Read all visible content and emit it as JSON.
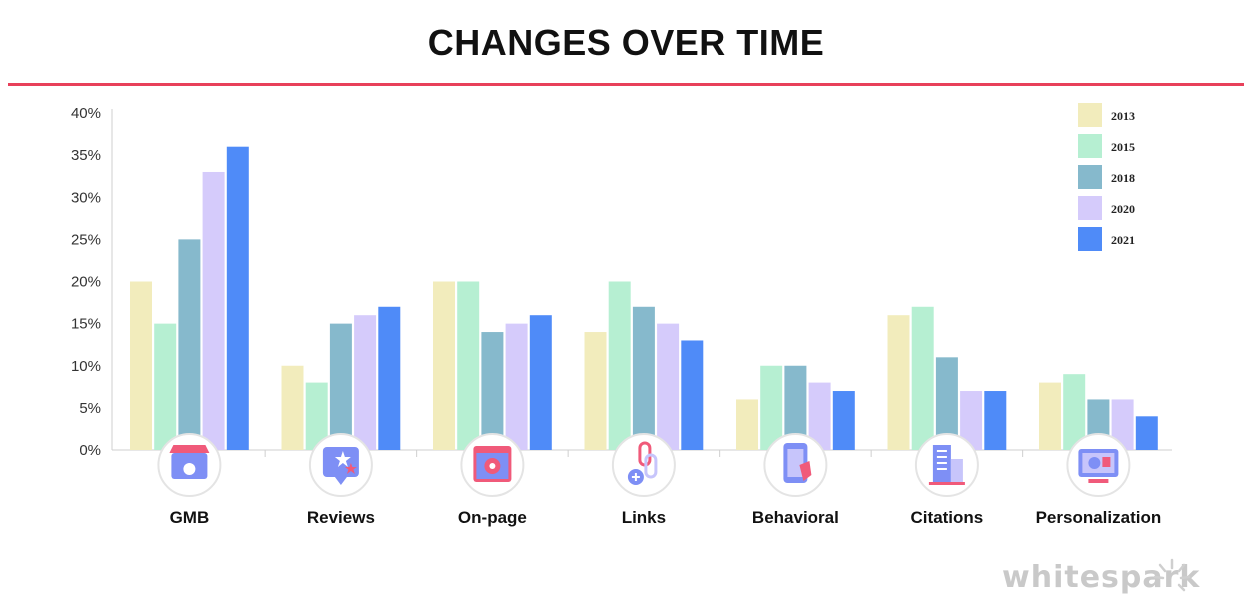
{
  "title": "CHANGES OVER TIME",
  "brand": "whitespark",
  "colors": {
    "title_rule": "#e8405a",
    "axis": "#cfcfcf",
    "icon_circle_stroke": "#e4e4e4",
    "brand": "#c9c9c9"
  },
  "chart_data": {
    "type": "bar",
    "title": "CHANGES OVER TIME",
    "xlabel": "",
    "ylabel": "",
    "ylim": [
      0,
      40
    ],
    "y_ticks": [
      "0%",
      "5%",
      "10%",
      "15%",
      "20%",
      "25%",
      "30%",
      "35%",
      "40%"
    ],
    "y_tick_values": [
      0,
      5,
      10,
      15,
      20,
      25,
      30,
      35,
      40
    ],
    "grid": false,
    "legend_position": "top-right",
    "categories": [
      "GMB",
      "Reviews",
      "On-page",
      "Links",
      "Behavioral",
      "Citations",
      "Personalization"
    ],
    "category_icons": [
      "storefront-icon",
      "star-rating-icon",
      "webpage-settings-icon",
      "chain-link-icon",
      "phone-tap-icon",
      "building-icon",
      "monitor-settings-icon"
    ],
    "series": [
      {
        "name": "2013",
        "color": "#f2ecbc",
        "values": [
          20,
          10,
          20,
          14,
          6,
          16,
          8
        ]
      },
      {
        "name": "2015",
        "color": "#b6efd2",
        "values": [
          15,
          8,
          20,
          20,
          10,
          17,
          9
        ]
      },
      {
        "name": "2018",
        "color": "#86b9cc",
        "values": [
          25,
          15,
          14,
          17,
          10,
          11,
          6
        ]
      },
      {
        "name": "2020",
        "color": "#d5cbfb",
        "values": [
          33,
          16,
          15,
          15,
          8,
          7,
          6
        ]
      },
      {
        "name": "2021",
        "color": "#4f8bf8",
        "values": [
          36,
          17,
          16,
          13,
          7,
          7,
          4
        ]
      }
    ]
  }
}
